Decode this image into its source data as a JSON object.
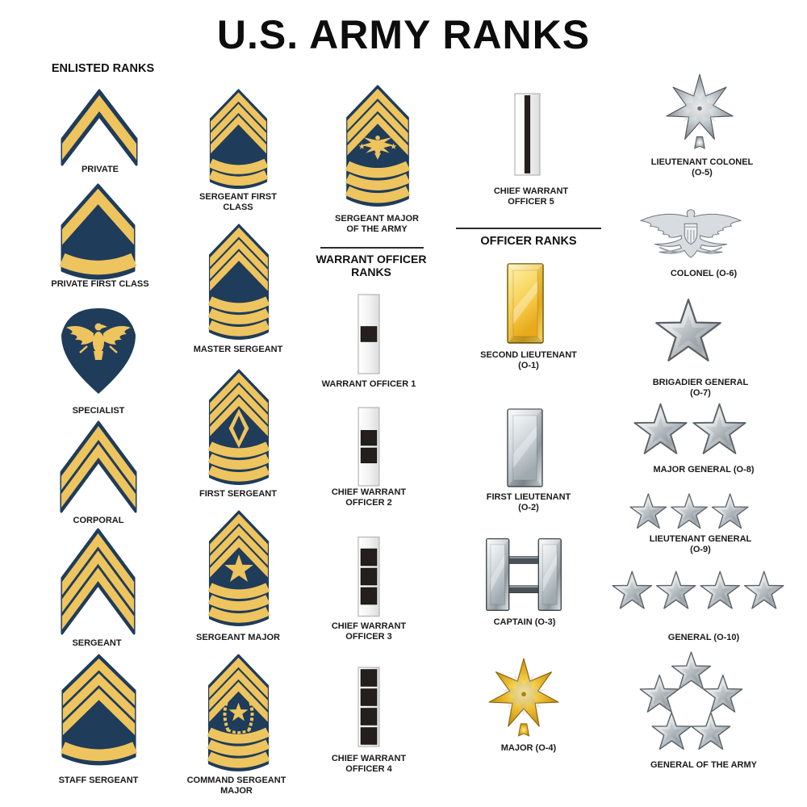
{
  "title": "U.S. ARMY RANKS",
  "colors": {
    "navy": "#1f3c5a",
    "gold": "#eec45f",
    "ink": "#1a1a1a",
    "black_square": "#241f1d",
    "silver_edge": "#5b6166",
    "gold_edge": "#8a6508"
  },
  "sections": {
    "enlisted": "ENLISTED RANKS",
    "warrant": "WARRANT OFFICER\nRANKS",
    "officer": "OFFICER RANKS"
  },
  "ranks": [
    {
      "id": "pvt",
      "name": "private",
      "label": "PRIVATE",
      "icon": {
        "type": "chevron",
        "chevrons": 1,
        "rockers": 0,
        "rise": 60,
        "t": 20,
        "m": 6
      }
    },
    {
      "id": "pfc",
      "name": "private-first-class",
      "label": "PRIVATE FIRST CLASS",
      "icon": {
        "type": "chevron",
        "chevrons": 1,
        "rockers": 1,
        "rise": 52,
        "t": 20,
        "rw": 18,
        "dip": 10
      }
    },
    {
      "id": "spc",
      "name": "specialist",
      "label": "SPECIALIST",
      "icon": {
        "type": "specialist"
      }
    },
    {
      "id": "cpl",
      "name": "corporal",
      "label": "CORPORAL",
      "icon": {
        "type": "chevron",
        "chevrons": 2,
        "rockers": 0,
        "rise": 62,
        "t": 17
      }
    },
    {
      "id": "sgt",
      "name": "sergeant",
      "label": "SERGEANT",
      "icon": {
        "type": "chevron",
        "chevrons": 3,
        "rockers": 0,
        "rise": 62,
        "t": 17
      }
    },
    {
      "id": "ssg",
      "name": "staff-sergeant",
      "label": "STAFF SERGEANT",
      "icon": {
        "type": "chevron",
        "chevrons": 3,
        "rockers": 1,
        "rise": 45,
        "t": 15,
        "g": 4,
        "m": 4,
        "dip": 10
      }
    },
    {
      "id": "sfc",
      "name": "sergeant-first-class",
      "label": "SERGEANT FIRST\nCLASS",
      "icon": {
        "type": "chevron",
        "chevrons": 3,
        "rockers": 2,
        "rise": 48,
        "t": 15,
        "g": 4,
        "m": 4,
        "dip": 11
      }
    },
    {
      "id": "msg",
      "name": "master-sergeant",
      "label": "MASTER SERGEANT",
      "icon": {
        "type": "chevron",
        "chevrons": 3,
        "rockers": 3,
        "rise": 48,
        "t": 15,
        "g": 4,
        "m": 4,
        "dip": 11
      }
    },
    {
      "id": "1sg",
      "name": "first-sergeant",
      "label": "FIRST SERGEANT",
      "icon": {
        "type": "chevron",
        "chevrons": 3,
        "rockers": 3,
        "center": "diamond",
        "rise": 48,
        "t": 15,
        "g": 4,
        "m": 4,
        "dip": 11
      }
    },
    {
      "id": "sgm",
      "name": "sergeant-major",
      "label": "SERGEANT MAJOR",
      "icon": {
        "type": "chevron",
        "chevrons": 3,
        "rockers": 3,
        "center": "star",
        "rise": 48,
        "t": 15,
        "g": 4,
        "m": 4,
        "dip": 11
      }
    },
    {
      "id": "csm",
      "name": "command-sergeant-major",
      "label": "COMMAND SERGEANT\nMAJOR",
      "icon": {
        "type": "chevron",
        "chevrons": 3,
        "rockers": 3,
        "center": "wreath-star",
        "rise": 48,
        "t": 15,
        "g": 4,
        "m": 4,
        "dip": 11
      }
    },
    {
      "id": "sma",
      "name": "sergeant-major-of-the-army",
      "label": "SERGEANT MAJOR\nOF THE ARMY",
      "icon": {
        "type": "chevron",
        "chevrons": 3,
        "rockers": 3,
        "center": "eagle-stars",
        "rise": 48,
        "t": 15,
        "g": 4,
        "m": 4,
        "dip": 11
      }
    },
    {
      "id": "wo1",
      "name": "warrant-officer-1",
      "label": "WARRANT OFFICER 1",
      "icon": {
        "type": "wo-bar",
        "squares": 1
      }
    },
    {
      "id": "cw2",
      "name": "chief-warrant-officer-2",
      "label": "CHIEF WARRANT\nOFFICER 2",
      "icon": {
        "type": "wo-bar",
        "squares": 2
      }
    },
    {
      "id": "cw3",
      "name": "chief-warrant-officer-3",
      "label": "CHIEF WARRANT\nOFFICER 3",
      "icon": {
        "type": "wo-bar",
        "squares": 3
      }
    },
    {
      "id": "cw4",
      "name": "chief-warrant-officer-4",
      "label": "CHIEF WARRANT\nOFFICER 4",
      "icon": {
        "type": "wo-bar",
        "squares": 4
      }
    },
    {
      "id": "cw5",
      "name": "chief-warrant-officer-5",
      "label": "CHIEF WARRANT\nOFFICER 5",
      "icon": {
        "type": "wo-bar",
        "stripe": true
      }
    },
    {
      "id": "o1",
      "name": "second-lieutenant",
      "label": "SECOND LIEUTENANT\n(O-1)",
      "icon": {
        "type": "bar",
        "metal": "gold"
      }
    },
    {
      "id": "o2",
      "name": "first-lieutenant",
      "label": "FIRST LIEUTENANT\n(O-2)",
      "icon": {
        "type": "bar",
        "metal": "silver"
      }
    },
    {
      "id": "o3",
      "name": "captain",
      "label": "CAPTAIN (O-3)",
      "icon": {
        "type": "double-bar"
      }
    },
    {
      "id": "o4",
      "name": "major",
      "label": "MAJOR (O-4)",
      "icon": {
        "type": "oak-leaf",
        "metal": "gold"
      }
    },
    {
      "id": "o5",
      "name": "lieutenant-colonel",
      "label": "LIEUTENANT COLONEL\n(O-5)",
      "icon": {
        "type": "oak-leaf",
        "metal": "silver"
      }
    },
    {
      "id": "o6",
      "name": "colonel",
      "label": "COLONEL (O-6)",
      "icon": {
        "type": "eagle"
      }
    },
    {
      "id": "o7",
      "name": "brigadier-general",
      "label": "BRIGADIER GENERAL\n(O-7)",
      "icon": {
        "type": "stars",
        "count": 1
      }
    },
    {
      "id": "o8",
      "name": "major-general",
      "label": "MAJOR GENERAL (O-8)",
      "icon": {
        "type": "stars",
        "count": 2
      }
    },
    {
      "id": "o9",
      "name": "lieutenant-general",
      "label": "LIEUTENANT GENERAL\n(O-9)",
      "icon": {
        "type": "stars",
        "count": 3
      }
    },
    {
      "id": "o10",
      "name": "general",
      "label": "GENERAL (O-10)",
      "icon": {
        "type": "stars",
        "count": 4
      }
    },
    {
      "id": "goa",
      "name": "general-of-the-army",
      "label": "GENERAL OF THE ARMY",
      "icon": {
        "type": "stars-pentagon",
        "count": 5
      }
    }
  ]
}
